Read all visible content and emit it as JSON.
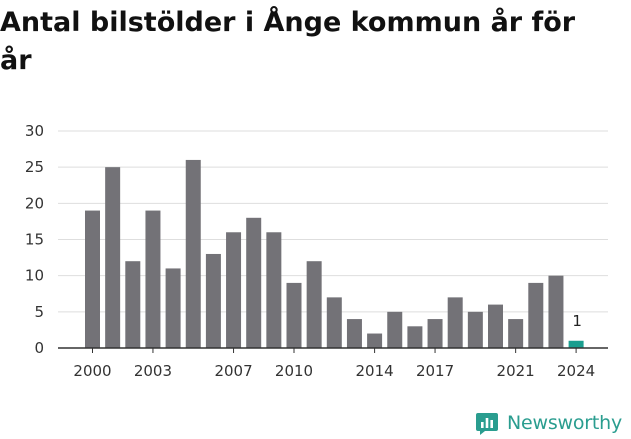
{
  "title": "Antal bilstölder i Ånge kommun år för år",
  "brand": {
    "name": "Newsworthy",
    "icon": "newsworthy-logo-icon",
    "color": "#2a9d8f"
  },
  "chart_data": {
    "type": "bar",
    "title": "Antal bilstölder i Ånge kommun år för år",
    "xlabel": "",
    "ylabel": "",
    "x": [
      2000,
      2001,
      2002,
      2003,
      2004,
      2005,
      2006,
      2007,
      2008,
      2009,
      2010,
      2011,
      2012,
      2013,
      2014,
      2015,
      2016,
      2017,
      2018,
      2019,
      2020,
      2021,
      2022,
      2023,
      2024
    ],
    "values": [
      19,
      25,
      12,
      19,
      11,
      26,
      13,
      16,
      18,
      16,
      9,
      12,
      7,
      4,
      2,
      5,
      3,
      4,
      7,
      5,
      6,
      4,
      9,
      10,
      1
    ],
    "x_tick_labels": [
      "2000",
      "2003",
      "2007",
      "2010",
      "2014",
      "2017",
      "2021",
      "2024"
    ],
    "y_ticks": [
      0,
      5,
      10,
      15,
      20,
      25,
      30
    ],
    "ylim": [
      0,
      30
    ],
    "grid": true,
    "bar_color": "#737277",
    "highlight": {
      "x": 2024,
      "color": "#1a9e8f",
      "label": "1"
    }
  }
}
